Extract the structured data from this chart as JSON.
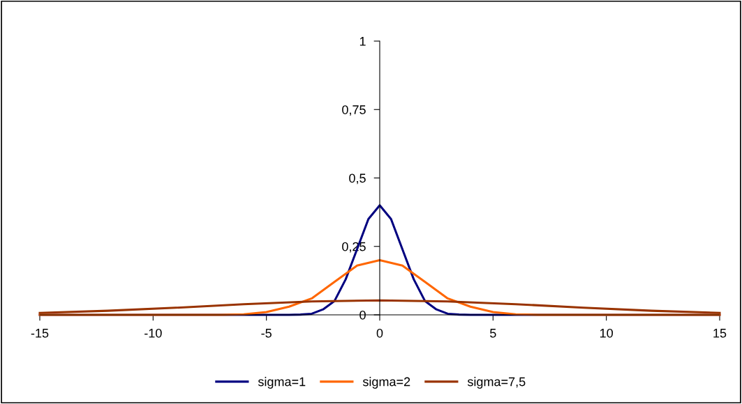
{
  "chart_data": {
    "type": "line",
    "xlim": [
      -15,
      15
    ],
    "xticks": [
      {
        "value": -15,
        "label": "-15"
      },
      {
        "value": -10,
        "label": "-10"
      },
      {
        "value": -5,
        "label": "-5"
      },
      0,
      5,
      10,
      15
    ],
    "ylim": [
      0,
      1
    ],
    "yticks": [
      0,
      {
        "value": 0.25,
        "label": "0,25"
      },
      {
        "value": 0.5,
        "label": "0,5"
      },
      {
        "value": 0.75,
        "label": "0,75"
      },
      1
    ],
    "grid": false,
    "legend": "bottom",
    "marker": "none",
    "line_style": "solid",
    "series": [
      {
        "name": "sigma=1",
        "color": "#000080",
        "x": [
          -15,
          -4,
          -3.5,
          -3,
          -2.5,
          -2,
          -1.5,
          -1,
          -0.5,
          0,
          0.5,
          1,
          1.5,
          2,
          2.5,
          3,
          3.5,
          4,
          15
        ],
        "values": [
          0,
          0,
          0.001,
          0.004,
          0.02,
          0.05,
          0.13,
          0.24,
          0.35,
          0.4,
          0.35,
          0.24,
          0.13,
          0.05,
          0.02,
          0.004,
          0.001,
          0,
          0
        ]
      },
      {
        "name": "sigma=2",
        "color": "#ff6600",
        "x": [
          -15,
          -7,
          -6,
          -5,
          -4,
          -3,
          -2,
          -1,
          0,
          1,
          2,
          3,
          4,
          5,
          6,
          7,
          15
        ],
        "values": [
          0,
          0,
          0.002,
          0.01,
          0.03,
          0.06,
          0.12,
          0.18,
          0.2,
          0.18,
          0.12,
          0.06,
          0.03,
          0.01,
          0.002,
          0,
          0
        ]
      },
      {
        "name": "sigma=7,5",
        "color": "#993300",
        "x": [
          -15,
          -12,
          -9,
          -6,
          -3,
          0,
          3,
          6,
          9,
          12,
          15
        ],
        "values": [
          0.007,
          0.015,
          0.026,
          0.039,
          0.049,
          0.053,
          0.049,
          0.039,
          0.026,
          0.015,
          0.007
        ]
      }
    ]
  }
}
